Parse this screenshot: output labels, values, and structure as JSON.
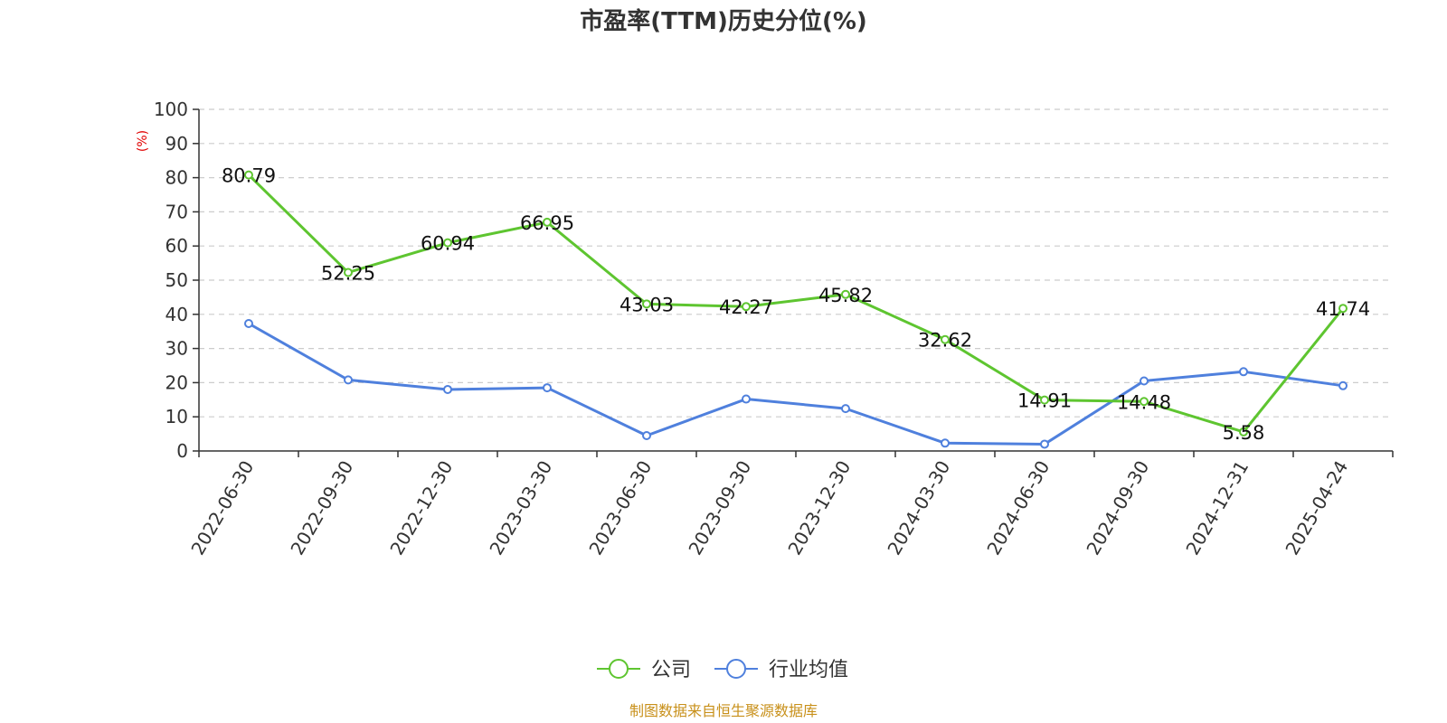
{
  "chart_data": {
    "type": "line",
    "title": "市盈率(TTM)历史分位(%)",
    "ylabel": "(%)",
    "ylim": [
      0,
      100
    ],
    "yticks": [
      0,
      10,
      20,
      30,
      40,
      50,
      60,
      70,
      80,
      90,
      100
    ],
    "grid": true,
    "legend_position": "bottom",
    "categories": [
      "2022-06-30",
      "2022-09-30",
      "2022-12-30",
      "2023-03-30",
      "2023-06-30",
      "2023-09-30",
      "2023-12-30",
      "2024-03-30",
      "2024-06-30",
      "2024-09-30",
      "2024-12-31",
      "2025-04-24"
    ],
    "series": [
      {
        "name": "公司",
        "color": "#5ec530",
        "values": [
          80.79,
          52.25,
          60.94,
          66.95,
          43.03,
          42.27,
          45.82,
          32.62,
          14.91,
          14.48,
          5.58,
          41.74
        ],
        "labels": [
          "80.79",
          "52.25",
          "60.94",
          "66.95",
          "43.03",
          "42.27",
          "45.82",
          "32.62",
          "14.91",
          "14.48",
          "5.58",
          "41.74"
        ]
      },
      {
        "name": "行业均值",
        "color": "#4f80dd",
        "values": [
          37.3,
          20.8,
          18.0,
          18.5,
          4.5,
          15.2,
          12.4,
          2.3,
          2.0,
          20.5,
          23.2,
          19.1
        ]
      }
    ],
    "source": "制图数据来自恒生聚源数据库"
  }
}
